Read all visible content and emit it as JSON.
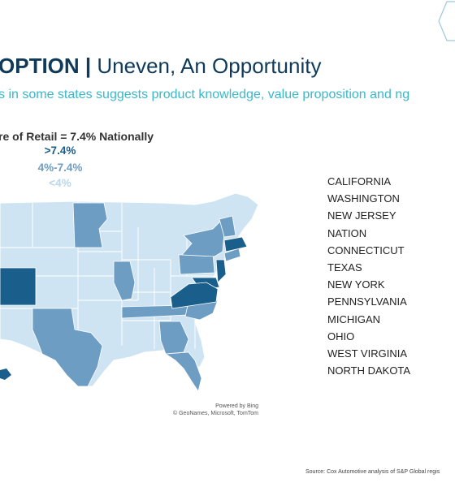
{
  "header": {
    "title_bold": "OPTION |",
    "title_regular": " Uneven, An Opportunity",
    "subtitle": "s in some states suggests product knowledge, value proposition and ng"
  },
  "chart_data": {
    "type": "choropleth-map",
    "title": "re of Retail = 7.4% Nationally",
    "legend": [
      {
        "label": ">7.4%",
        "color": "#1a5f8b"
      },
      {
        "label": "4%-7.4%",
        "color": "#6d9dc3"
      },
      {
        "label": "<4%",
        "color": "#b8d7ec"
      }
    ],
    "map_credit": [
      "Powered by Bing",
      "© GeoNames, Microsoft, TomTom"
    ]
  },
  "state_list": [
    "CALIFORNIA",
    "WASHINGTON",
    "NEW JERSEY",
    "NATION",
    "CONNECTICUT",
    "TEXAS",
    "NEW YORK",
    "PENNSYLVANIA",
    "MICHIGAN",
    "OHIO",
    "WEST VIRGINIA",
    "NORTH DAKOTA"
  ],
  "footer": {
    "source": "Source: Cox Automotive analysis of S&P Global regis"
  },
  "colors": {
    "high": "#1a5f8b",
    "mid": "#6d9dc3",
    "low": "#cfe4f3",
    "title": "#0f3a5a",
    "subtitle": "#39b8c9"
  }
}
